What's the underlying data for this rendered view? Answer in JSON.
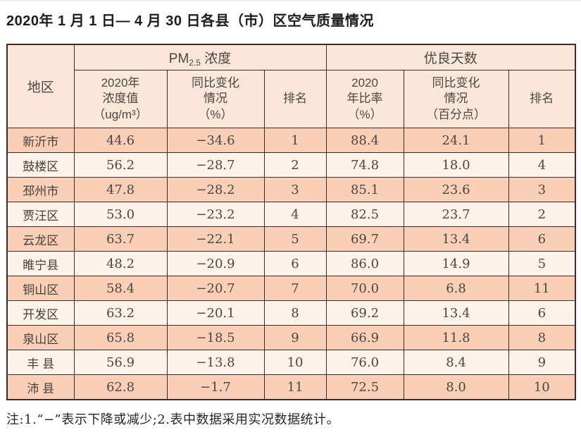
{
  "page": {
    "title": "2020年 1 月 1 日— 4 月 30 日各县（市）区空气质量情况",
    "note": "注:1.“−”表示下降或减少;2.表中数据采用实况数据统计。"
  },
  "colors": {
    "header_bg": "#fbe7da",
    "row_odd_bg": "#f9cfb7",
    "row_even_bg": "#fdf3ea",
    "border": "#3c2b26",
    "text": "#4d4640",
    "title_text": "#1c1c1c"
  },
  "table": {
    "header": {
      "region": "地区",
      "pm_group": {
        "base": "PM",
        "sub": "2.5",
        "rest": " 浓度"
      },
      "good_group": "优良天数",
      "sub_columns": [
        "2020年\n浓度值\n（ug/m³）",
        "同比变化\n情况\n（%）",
        "排名",
        "2020\n年比率\n（%）",
        "同比变化\n情况\n（百分点）",
        "排名"
      ]
    },
    "rows": [
      {
        "region": "新沂市",
        "pm_value": "44.6",
        "pm_change": "−34.6",
        "pm_rank": "1",
        "good_rate": "88.4",
        "good_change": "24.1",
        "good_rank": "1"
      },
      {
        "region": "鼓楼区",
        "pm_value": "56.2",
        "pm_change": "−28.7",
        "pm_rank": "2",
        "good_rate": "74.8",
        "good_change": "18.0",
        "good_rank": "4"
      },
      {
        "region": "邳州市",
        "pm_value": "47.8",
        "pm_change": "−28.2",
        "pm_rank": "3",
        "good_rate": "85.1",
        "good_change": "23.6",
        "good_rank": "3"
      },
      {
        "region": "贾汪区",
        "pm_value": "53.0",
        "pm_change": "−23.2",
        "pm_rank": "4",
        "good_rate": "82.5",
        "good_change": "23.7",
        "good_rank": "2"
      },
      {
        "region": "云龙区",
        "pm_value": "63.7",
        "pm_change": "−22.1",
        "pm_rank": "5",
        "good_rate": "69.7",
        "good_change": "13.4",
        "good_rank": "6"
      },
      {
        "region": "睢宁县",
        "pm_value": "48.2",
        "pm_change": "−20.9",
        "pm_rank": "6",
        "good_rate": "86.0",
        "good_change": "14.9",
        "good_rank": "5"
      },
      {
        "region": "铜山区",
        "pm_value": "58.4",
        "pm_change": "−20.7",
        "pm_rank": "7",
        "good_rate": "70.0",
        "good_change": "6.8",
        "good_rank": "11"
      },
      {
        "region": "开发区",
        "pm_value": "63.2",
        "pm_change": "−20.1",
        "pm_rank": "8",
        "good_rate": "69.2",
        "good_change": "13.4",
        "good_rank": "6"
      },
      {
        "region": "泉山区",
        "pm_value": "65.8",
        "pm_change": "−18.5",
        "pm_rank": "9",
        "good_rate": "66.9",
        "good_change": "11.8",
        "good_rank": "8"
      },
      {
        "region": "丰 县",
        "pm_value": "56.9",
        "pm_change": "−13.8",
        "pm_rank": "10",
        "good_rate": "76.0",
        "good_change": "8.4",
        "good_rank": "9"
      },
      {
        "region": "沛 县",
        "pm_value": "62.8",
        "pm_change": "−1.7",
        "pm_rank": "11",
        "good_rate": "72.5",
        "good_change": "8.0",
        "good_rank": "10"
      }
    ]
  }
}
